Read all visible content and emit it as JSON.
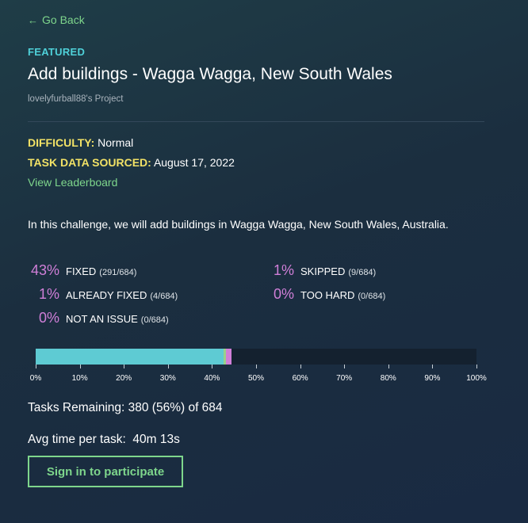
{
  "nav": {
    "back_icon": "arrow-left-icon",
    "back_glyph": "←",
    "back_label": "Go Back"
  },
  "challenge": {
    "badge": "FEATURED",
    "title": "Add buildings - Wagga Wagga, New South Wales",
    "owner": "lovelyfurball88's Project",
    "difficulty_key": "DIFFICULTY:",
    "difficulty_value": "Normal",
    "sourced_key": "TASK DATA SOURCED:",
    "sourced_value": "August 17, 2022",
    "leaderboard_link": "View Leaderboard",
    "description": "In this challenge, we will add buildings in Wagga Wagga, New South Wales, Australia."
  },
  "stats": {
    "fixed": {
      "pct": "43%",
      "label": "FIXED",
      "count": "(291/684)"
    },
    "already": {
      "pct": "1%",
      "label": "ALREADY FIXED",
      "count": "(4/684)"
    },
    "notissue": {
      "pct": "0%",
      "label": "NOT AN ISSUE",
      "count": "(0/684)"
    },
    "skipped": {
      "pct": "1%",
      "label": "SKIPPED",
      "count": "(9/684)"
    },
    "toohard": {
      "pct": "0%",
      "label": "TOO HARD",
      "count": "(0/684)"
    }
  },
  "progress": {
    "total": 684,
    "segments": [
      {
        "name": "fixed",
        "value": 291,
        "color": "#5ecbd3"
      },
      {
        "name": "already_fixed",
        "value": 4,
        "color": "#9bd08a"
      },
      {
        "name": "not_an_issue",
        "value": 0,
        "color": "#e0d26a"
      },
      {
        "name": "skipped",
        "value": 9,
        "color": "#d07fd8"
      },
      {
        "name": "too_hard",
        "value": 0,
        "color": "#e07a6a"
      }
    ],
    "remaining_color": "#14212f",
    "ticks": [
      "0%",
      "10%",
      "20%",
      "30%",
      "40%",
      "50%",
      "60%",
      "70%",
      "80%",
      "90%",
      "100%"
    ]
  },
  "summary": {
    "remaining": "Tasks Remaining: 380 (56%) of 684",
    "avg_time": "Avg time per task:  40m 13s"
  },
  "actions": {
    "signin_label": "Sign in to participate"
  },
  "colors": {
    "accent_green": "#7ed68c",
    "featured_cyan": "#4fd1d9",
    "key_yellow": "#f2e266",
    "stat_pink": "#d07fd8"
  }
}
